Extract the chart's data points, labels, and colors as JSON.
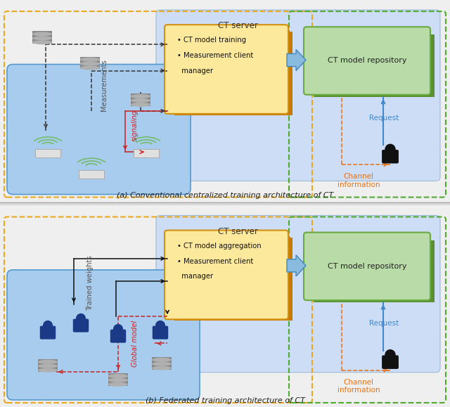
{
  "fig_width": 6.4,
  "fig_height": 5.79,
  "bg_color": "#d8d8d8",
  "panel_bg": "#efefef",
  "ct_server_bg": "#ccddf5",
  "orange_box_bg": "#fde99c",
  "orange_box_edge": "#d4900a",
  "orange_box_side": "#c87a00",
  "green_box_bg": "#b8dba8",
  "green_box_edge": "#6aaa40",
  "green_box_side": "#5a9030",
  "blue_area_bg": "#a8ccee",
  "blue_area_edge": "#5599cc",
  "orange_dashed_color": "#e8a820",
  "green_dashed_color": "#50aa30",
  "red_color": "#cc2222",
  "blue_arrow_color": "#4488cc",
  "orange_info_color": "#e87010",
  "dark_gray": "#555555",
  "panel_a_caption": "(a) Conventional centralized training architecture of CT",
  "panel_b_caption": "(b) Federated training architecture of CT",
  "ct_server_label": "CT server",
  "box1a_line1": "  CT model training",
  "box1a_line2": "  Measurement client",
  "box1a_line3": "  manager",
  "box1b_line1": "  CT model aggregation",
  "box1b_line2": "  Measurement client",
  "box1b_line3": "  manager",
  "repo_label": "CT model repository",
  "request_label": "Request",
  "channel_info_label": "Channel\ninformation",
  "measurements_label": "Measurements",
  "signaling_label": "signaling",
  "trained_weights_label": "Trained weights",
  "global_model_label": "Global model"
}
